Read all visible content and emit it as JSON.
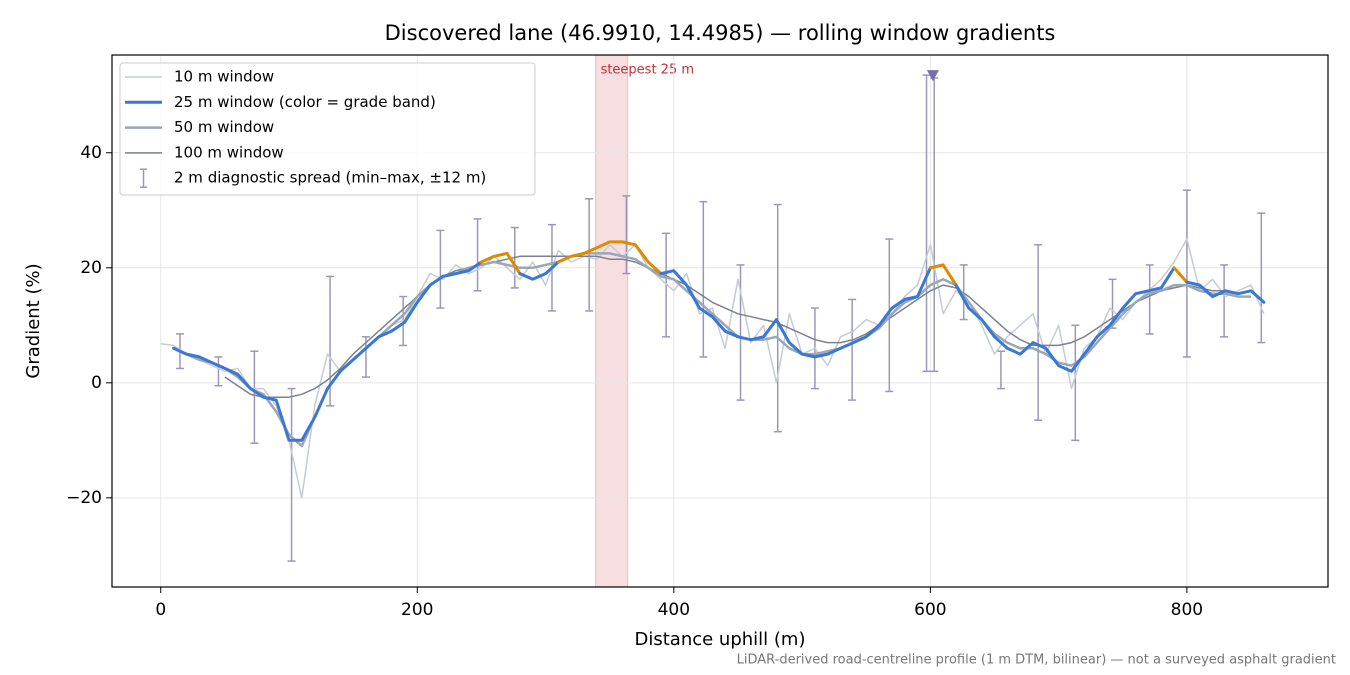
{
  "chart_data": {
    "type": "line",
    "title": "Discovered lane (46.9910, 14.4985) — rolling window gradients",
    "x_label": "Distance uphill (m)",
    "y_label": "Gradient (%)",
    "footnote": "LiDAR-derived road-centreline profile (1 m DTM, bilinear) — not a surveyed asphalt gradient",
    "xlim": [
      -38,
      910
    ],
    "ylim": [
      -35.5,
      57
    ],
    "xticks": [
      0,
      200,
      400,
      600,
      800
    ],
    "yticks": [
      -20,
      0,
      20,
      40
    ],
    "grid": true,
    "legend": "upper left",
    "x": [
      0,
      10,
      20,
      30,
      40,
      50,
      60,
      70,
      80,
      90,
      100,
      110,
      120,
      130,
      140,
      150,
      160,
      170,
      180,
      190,
      200,
      210,
      220,
      230,
      240,
      250,
      260,
      270,
      280,
      290,
      300,
      310,
      320,
      330,
      340,
      350,
      360,
      370,
      380,
      390,
      400,
      410,
      420,
      430,
      440,
      450,
      460,
      470,
      480,
      490,
      500,
      510,
      520,
      530,
      540,
      550,
      560,
      570,
      580,
      590,
      600,
      610,
      620,
      630,
      640,
      650,
      660,
      670,
      680,
      690,
      700,
      710,
      720,
      730,
      740,
      750,
      760,
      770,
      780,
      790,
      800,
      810,
      820,
      830,
      840,
      850,
      860
    ],
    "series": [
      {
        "name": "10 m window",
        "color": "#c5ccd6",
        "width": 1.5,
        "values": [
          6.8,
          6.5,
          5,
          4,
          3,
          2,
          2.5,
          -1,
          -1,
          -4,
          -10,
          -20,
          -4,
          5,
          2,
          4,
          6,
          8,
          10,
          11,
          15,
          19,
          18,
          20.5,
          19,
          20,
          22,
          20,
          18,
          21,
          17,
          23,
          21,
          22,
          21.5,
          24,
          22,
          24,
          20,
          18,
          16,
          19,
          12,
          13,
          6,
          18,
          7,
          10,
          0,
          12,
          5,
          6,
          3,
          8,
          9,
          11,
          10,
          12,
          15,
          17,
          24,
          12,
          16,
          14,
          10,
          5,
          8,
          10,
          12,
          5,
          10,
          -1,
          6,
          8,
          13,
          11,
          14,
          16,
          18,
          21,
          25,
          16,
          18,
          15,
          16,
          17,
          12
        ]
      },
      {
        "name": "25 m window (color = grade band)",
        "color": "#3a78d4",
        "width": 3,
        "values": [
          null,
          6,
          5,
          4.5,
          3.5,
          2.5,
          1.5,
          -1,
          -2.5,
          -3,
          -10,
          -10,
          -6,
          -1,
          2,
          4,
          6,
          8,
          9,
          10.5,
          14,
          17,
          18.5,
          19,
          19.5,
          21,
          22,
          22.5,
          19,
          18,
          19,
          21,
          22,
          22.5,
          23.5,
          24.5,
          24.5,
          24,
          21,
          19,
          19.5,
          17,
          13,
          11.5,
          9,
          8,
          7.5,
          8,
          11,
          7,
          5,
          4.5,
          5,
          6,
          7,
          8,
          10,
          13,
          14.5,
          15,
          20,
          20.5,
          17,
          13,
          11,
          8,
          6,
          5,
          7,
          6,
          3,
          2,
          5,
          8,
          10,
          13,
          15.5,
          16,
          16.5,
          20,
          17.5,
          17,
          15,
          16,
          15.5,
          16,
          14
        ],
        "point_colors": [
          "#3a78d4",
          "#3a78d4",
          "#3a78d4",
          "#3a78d4",
          "#3a78d4",
          "#3a78d4",
          "#3a78d4",
          "#3a78d4",
          "#3a78d4",
          "#3a78d4",
          "#3a78d4",
          "#3a78d4",
          "#3a78d4",
          "#3a78d4",
          "#3a78d4",
          "#3a78d4",
          "#3a78d4",
          "#3a78d4",
          "#3a78d4",
          "#3a78d4",
          "#3a78d4",
          "#3a78d4",
          "#3a78d4",
          "#3a78d4",
          "#3a78d4",
          "#e08a00",
          "#e08a00",
          "#e08a00",
          "#3a78d4",
          "#3a78d4",
          "#3a78d4",
          "#e08a00",
          "#e08a00",
          "#e08a00",
          "#e08a00",
          "#e08a00",
          "#e08a00",
          "#e08a00",
          "#e08a00",
          "#3a78d4",
          "#3a78d4",
          "#3a78d4",
          "#3a78d4",
          "#3a78d4",
          "#3a78d4",
          "#3a78d4",
          "#3a78d4",
          "#3a78d4",
          "#3a78d4",
          "#3a78d4",
          "#3a78d4",
          "#3a78d4",
          "#3a78d4",
          "#3a78d4",
          "#3a78d4",
          "#3a78d4",
          "#3a78d4",
          "#3a78d4",
          "#3a78d4",
          "#3a78d4",
          "#e08a00",
          "#e08a00",
          "#3a78d4",
          "#3a78d4",
          "#3a78d4",
          "#3a78d4",
          "#3a78d4",
          "#3a78d4",
          "#3a78d4",
          "#3a78d4",
          "#3a78d4",
          "#3a78d4",
          "#3a78d4",
          "#3a78d4",
          "#3a78d4",
          "#3a78d4",
          "#3a78d4",
          "#3a78d4",
          "#3a78d4",
          "#e08a00",
          "#3a78d4",
          "#3a78d4",
          "#3a78d4",
          "#3a78d4",
          "#3a78d4",
          "#3a78d4",
          "#3a78d4"
        ]
      },
      {
        "name": "50 m window",
        "color": "#9ba7b6",
        "width": 2.5,
        "values": [
          null,
          6,
          5,
          4,
          3.5,
          2.5,
          1,
          -1,
          -2,
          -5,
          -9,
          -11,
          -6,
          -1,
          2,
          4,
          6,
          8,
          10,
          12,
          15,
          17,
          18.5,
          19,
          20,
          20.5,
          21,
          20.5,
          20,
          20,
          20.5,
          21,
          22,
          22.5,
          22.5,
          22.5,
          22,
          21.5,
          20,
          18.5,
          18,
          16,
          14,
          12,
          10,
          8,
          7.5,
          7.5,
          8,
          6,
          5,
          5,
          5.5,
          6,
          7,
          8,
          9.5,
          12,
          14,
          15,
          17,
          18,
          17,
          14,
          11,
          8.5,
          7,
          6,
          6,
          5,
          3.5,
          3,
          4.5,
          7,
          9.5,
          12,
          14,
          15.5,
          16,
          17,
          17,
          16,
          15.5,
          15.5,
          15,
          15,
          null
        ]
      },
      {
        "name": "100 m window",
        "color": "#7b8190",
        "width": 1.5,
        "values": [
          null,
          null,
          null,
          null,
          null,
          1,
          -0.5,
          -2,
          -2.5,
          -2.5,
          -2.5,
          -2,
          -1,
          0.5,
          2.5,
          5,
          7,
          9,
          11,
          13,
          15,
          17,
          18.5,
          19.5,
          20,
          20.5,
          21,
          21.5,
          22,
          22,
          22,
          22,
          22,
          22,
          22,
          21.5,
          21.5,
          21,
          20,
          19,
          18,
          17,
          15.5,
          14,
          13,
          12,
          11.5,
          11,
          10.5,
          9.5,
          8.5,
          7.5,
          7,
          7,
          7.5,
          8.5,
          10,
          11.5,
          13,
          14.5,
          16,
          17,
          16.5,
          15,
          13,
          11,
          9,
          7.5,
          6.5,
          6.5,
          6.5,
          7,
          8,
          9.5,
          11,
          12.5,
          14,
          15,
          16,
          16.5,
          17,
          16.5,
          16,
          16,
          null,
          null,
          null
        ]
      }
    ],
    "error_bars": {
      "name": "2 m diagnostic spread (min–max, ±12 m)",
      "color": "#9c97b8",
      "x": [
        15,
        45,
        73,
        102,
        132,
        160,
        189,
        218,
        247,
        276,
        305,
        334,
        363,
        394,
        423,
        452,
        481,
        510,
        539,
        568,
        597,
        603,
        626,
        655,
        684,
        713,
        742,
        771,
        800,
        829,
        858
      ],
      "min": [
        2.5,
        -0.5,
        -10.5,
        -31,
        -4,
        1,
        6.5,
        13,
        16,
        16.5,
        12.5,
        12.5,
        19,
        8,
        4.5,
        -3,
        -8.5,
        -1,
        -3,
        -1.5,
        2,
        2,
        11,
        -1,
        -6.5,
        -10,
        9.5,
        8.5,
        4.5,
        8,
        7
      ],
      "max": [
        8.5,
        4.5,
        5.5,
        -1,
        18.5,
        8,
        15,
        26.5,
        28.5,
        27,
        27.5,
        32,
        32.5,
        26,
        31.5,
        20.5,
        31,
        13,
        14.5,
        25,
        53.5,
        53,
        20.5,
        5.5,
        24,
        10,
        18,
        20.5,
        33.5,
        20.5,
        29.5
      ]
    },
    "highlight": {
      "label": "steepest 25 m",
      "from": 339,
      "to": 364,
      "color": "#e8a0a8"
    },
    "peak_marker": {
      "x": 602,
      "y": 53.5,
      "color": "#7a6fa5"
    }
  }
}
